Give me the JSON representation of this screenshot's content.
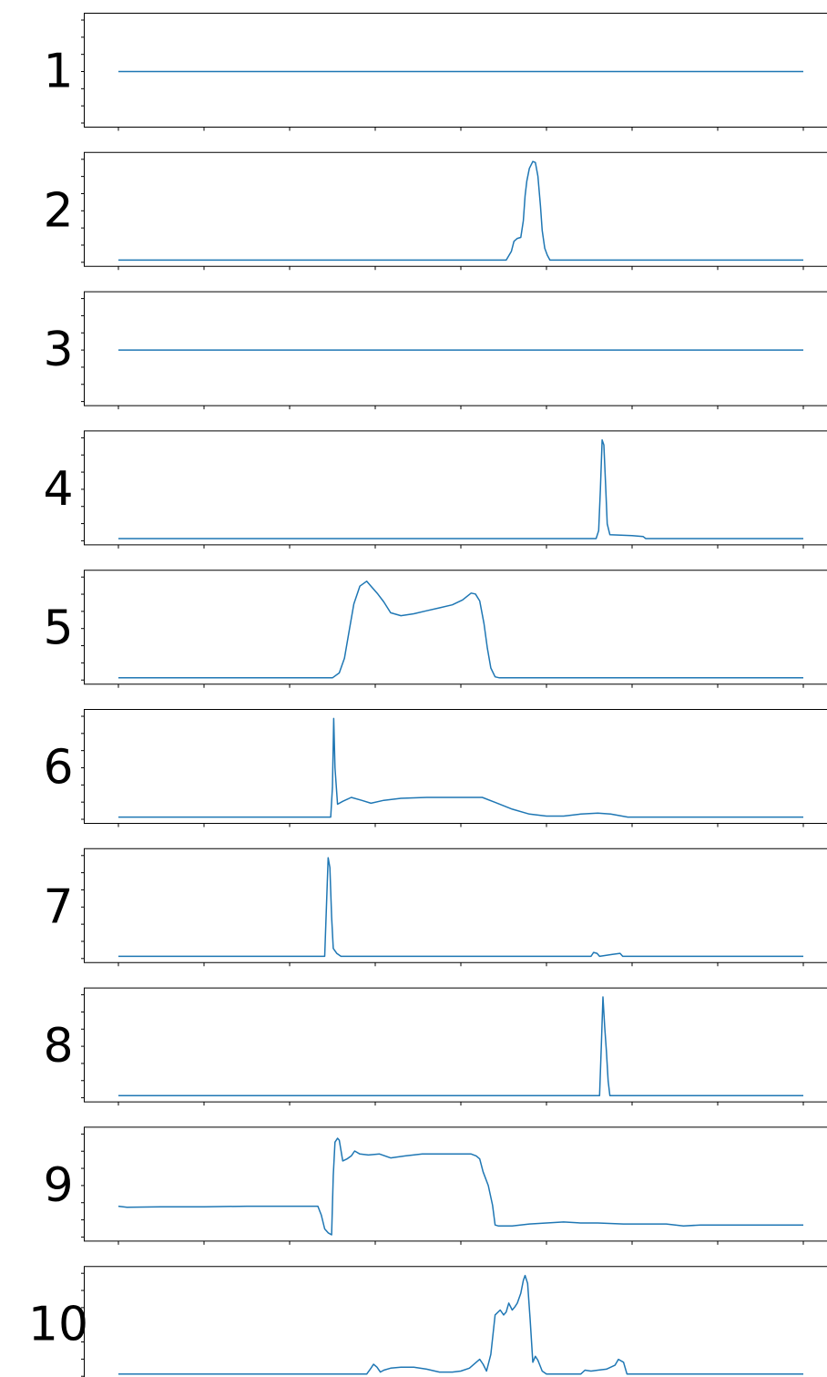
{
  "colors": {
    "line": "#1f77b4",
    "axes": "#000000",
    "background": "#ffffff"
  },
  "chart_data": [
    {
      "type": "line",
      "label": "1",
      "xlim": [
        0,
        800
      ],
      "ylim": [
        -1,
        1
      ],
      "points": [
        [
          0,
          0
        ],
        [
          800,
          0
        ]
      ]
    },
    {
      "type": "line",
      "label": "2",
      "xlim": [
        0,
        800
      ],
      "ylim": [
        -0.05,
        1.05
      ],
      "points": [
        [
          0,
          0
        ],
        [
          453,
          0
        ],
        [
          459,
          0.09
        ],
        [
          462,
          0.19
        ],
        [
          466,
          0.22
        ],
        [
          470,
          0.23
        ],
        [
          473,
          0.4
        ],
        [
          475,
          0.65
        ],
        [
          477,
          0.8
        ],
        [
          480,
          0.93
        ],
        [
          484,
          1.0
        ],
        [
          487,
          0.99
        ],
        [
          490,
          0.85
        ],
        [
          493,
          0.55
        ],
        [
          495,
          0.3
        ],
        [
          498,
          0.12
        ],
        [
          501,
          0.05
        ],
        [
          504,
          0
        ],
        [
          800,
          0
        ]
      ]
    },
    {
      "type": "line",
      "label": "3",
      "xlim": [
        0,
        800
      ],
      "ylim": [
        -1,
        1
      ],
      "points": [
        [
          0,
          0
        ],
        [
          800,
          0
        ]
      ]
    },
    {
      "type": "line",
      "label": "4",
      "xlim": [
        0,
        800
      ],
      "ylim": [
        -0.05,
        1.05
      ],
      "points": [
        [
          0,
          0
        ],
        [
          558,
          0
        ],
        [
          561,
          0.08
        ],
        [
          563,
          0.5
        ],
        [
          565,
          1.0
        ],
        [
          567,
          0.95
        ],
        [
          569,
          0.55
        ],
        [
          571,
          0.15
        ],
        [
          574,
          0.04
        ],
        [
          600,
          0.03
        ],
        [
          613,
          0.02
        ],
        [
          616,
          0
        ],
        [
          800,
          0
        ]
      ]
    },
    {
      "type": "line",
      "label": "5",
      "xlim": [
        0,
        800
      ],
      "ylim": [
        -0.05,
        1.05
      ],
      "points": [
        [
          0,
          0
        ],
        [
          250,
          0
        ],
        [
          258,
          0.05
        ],
        [
          264,
          0.2
        ],
        [
          270,
          0.5
        ],
        [
          275,
          0.75
        ],
        [
          282,
          0.93
        ],
        [
          290,
          0.98
        ],
        [
          296,
          0.92
        ],
        [
          303,
          0.85
        ],
        [
          310,
          0.77
        ],
        [
          318,
          0.66
        ],
        [
          330,
          0.63
        ],
        [
          345,
          0.65
        ],
        [
          360,
          0.68
        ],
        [
          375,
          0.71
        ],
        [
          390,
          0.74
        ],
        [
          402,
          0.79
        ],
        [
          412,
          0.86
        ],
        [
          417,
          0.85
        ],
        [
          422,
          0.78
        ],
        [
          427,
          0.55
        ],
        [
          431,
          0.3
        ],
        [
          435,
          0.1
        ],
        [
          440,
          0.01
        ],
        [
          445,
          0
        ],
        [
          800,
          0
        ]
      ]
    },
    {
      "type": "line",
      "label": "6",
      "xlim": [
        0,
        800
      ],
      "ylim": [
        -0.05,
        1.05
      ],
      "points": [
        [
          0,
          0
        ],
        [
          248,
          0
        ],
        [
          250,
          0.3
        ],
        [
          251.5,
          1.0
        ],
        [
          253,
          0.5
        ],
        [
          256,
          0.13
        ],
        [
          262,
          0.16
        ],
        [
          272,
          0.2
        ],
        [
          284,
          0.17
        ],
        [
          295,
          0.14
        ],
        [
          310,
          0.17
        ],
        [
          330,
          0.19
        ],
        [
          360,
          0.2
        ],
        [
          400,
          0.2
        ],
        [
          425,
          0.2
        ],
        [
          440,
          0.15
        ],
        [
          460,
          0.08
        ],
        [
          480,
          0.03
        ],
        [
          500,
          0.01
        ],
        [
          520,
          0.01
        ],
        [
          540,
          0.03
        ],
        [
          560,
          0.04
        ],
        [
          575,
          0.03
        ],
        [
          595,
          0
        ],
        [
          800,
          0
        ]
      ]
    },
    {
      "type": "line",
      "label": "7",
      "xlim": [
        0,
        800
      ],
      "ylim": [
        -0.05,
        1.05
      ],
      "points": [
        [
          0,
          0
        ],
        [
          241,
          0
        ],
        [
          243,
          0.5
        ],
        [
          245,
          1.0
        ],
        [
          247,
          0.9
        ],
        [
          249,
          0.4
        ],
        [
          251,
          0.08
        ],
        [
          255,
          0.03
        ],
        [
          260,
          0
        ],
        [
          552,
          0
        ],
        [
          555,
          0.04
        ],
        [
          559,
          0.03
        ],
        [
          562,
          0
        ],
        [
          577,
          0.02
        ],
        [
          586,
          0.03
        ],
        [
          589,
          0
        ],
        [
          800,
          0
        ]
      ]
    },
    {
      "type": "line",
      "label": "8",
      "xlim": [
        0,
        800
      ],
      "ylim": [
        -0.05,
        1.05
      ],
      "points": [
        [
          0,
          0
        ],
        [
          562,
          0
        ],
        [
          564,
          0.5
        ],
        [
          566,
          1.0
        ],
        [
          568,
          0.7
        ],
        [
          570,
          0.45
        ],
        [
          572,
          0.15
        ],
        [
          574,
          0
        ],
        [
          800,
          0
        ]
      ]
    },
    {
      "type": "line",
      "label": "9",
      "xlim": [
        0,
        800
      ],
      "ylim": [
        -0.05,
        1.05
      ],
      "points": [
        [
          0,
          0.29
        ],
        [
          10,
          0.28
        ],
        [
          50,
          0.285
        ],
        [
          100,
          0.285
        ],
        [
          150,
          0.29
        ],
        [
          200,
          0.29
        ],
        [
          233,
          0.29
        ],
        [
          237,
          0.2
        ],
        [
          241,
          0.06
        ],
        [
          245,
          0.02
        ],
        [
          249,
          0.0
        ],
        [
          251,
          0.6
        ],
        [
          253,
          0.94
        ],
        [
          256,
          0.98
        ],
        [
          258,
          0.96
        ],
        [
          262,
          0.75
        ],
        [
          267,
          0.77
        ],
        [
          272,
          0.8
        ],
        [
          276,
          0.85
        ],
        [
          282,
          0.82
        ],
        [
          292,
          0.81
        ],
        [
          305,
          0.82
        ],
        [
          318,
          0.78
        ],
        [
          335,
          0.8
        ],
        [
          355,
          0.82
        ],
        [
          380,
          0.82
        ],
        [
          400,
          0.82
        ],
        [
          412,
          0.82
        ],
        [
          418,
          0.8
        ],
        [
          422,
          0.77
        ],
        [
          426,
          0.64
        ],
        [
          432,
          0.5
        ],
        [
          437,
          0.3
        ],
        [
          440,
          0.1
        ],
        [
          444,
          0.09
        ],
        [
          460,
          0.09
        ],
        [
          480,
          0.11
        ],
        [
          500,
          0.12
        ],
        [
          520,
          0.13
        ],
        [
          540,
          0.12
        ],
        [
          560,
          0.12
        ],
        [
          590,
          0.11
        ],
        [
          640,
          0.11
        ],
        [
          660,
          0.09
        ],
        [
          680,
          0.1
        ],
        [
          720,
          0.1
        ],
        [
          760,
          0.1
        ],
        [
          800,
          0.1
        ]
      ]
    },
    {
      "type": "line",
      "label": "10",
      "xlim": [
        0,
        800
      ],
      "ylim": [
        -0.05,
        1.05
      ],
      "points": [
        [
          0,
          0
        ],
        [
          290,
          0
        ],
        [
          295,
          0.06
        ],
        [
          298,
          0.1
        ],
        [
          302,
          0.07
        ],
        [
          306,
          0.02
        ],
        [
          310,
          0.04
        ],
        [
          318,
          0.06
        ],
        [
          330,
          0.07
        ],
        [
          345,
          0.07
        ],
        [
          360,
          0.05
        ],
        [
          375,
          0.02
        ],
        [
          390,
          0.02
        ],
        [
          400,
          0.03
        ],
        [
          410,
          0.06
        ],
        [
          418,
          0.12
        ],
        [
          422,
          0.15
        ],
        [
          426,
          0.1
        ],
        [
          430,
          0.03
        ],
        [
          435,
          0.2
        ],
        [
          440,
          0.6
        ],
        [
          446,
          0.65
        ],
        [
          450,
          0.6
        ],
        [
          453,
          0.63
        ],
        [
          456,
          0.72
        ],
        [
          460,
          0.65
        ],
        [
          463,
          0.68
        ],
        [
          466,
          0.72
        ],
        [
          470,
          0.82
        ],
        [
          473,
          0.95
        ],
        [
          475,
          1.0
        ],
        [
          478,
          0.92
        ],
        [
          481,
          0.55
        ],
        [
          484,
          0.12
        ],
        [
          487,
          0.18
        ],
        [
          490,
          0.14
        ],
        [
          495,
          0.03
        ],
        [
          500,
          0.0
        ],
        [
          540,
          0.0
        ],
        [
          545,
          0.04
        ],
        [
          552,
          0.03
        ],
        [
          560,
          0.04
        ],
        [
          570,
          0.05
        ],
        [
          580,
          0.09
        ],
        [
          584,
          0.15
        ],
        [
          590,
          0.12
        ],
        [
          594,
          0.0
        ],
        [
          800,
          0.0
        ]
      ]
    }
  ]
}
